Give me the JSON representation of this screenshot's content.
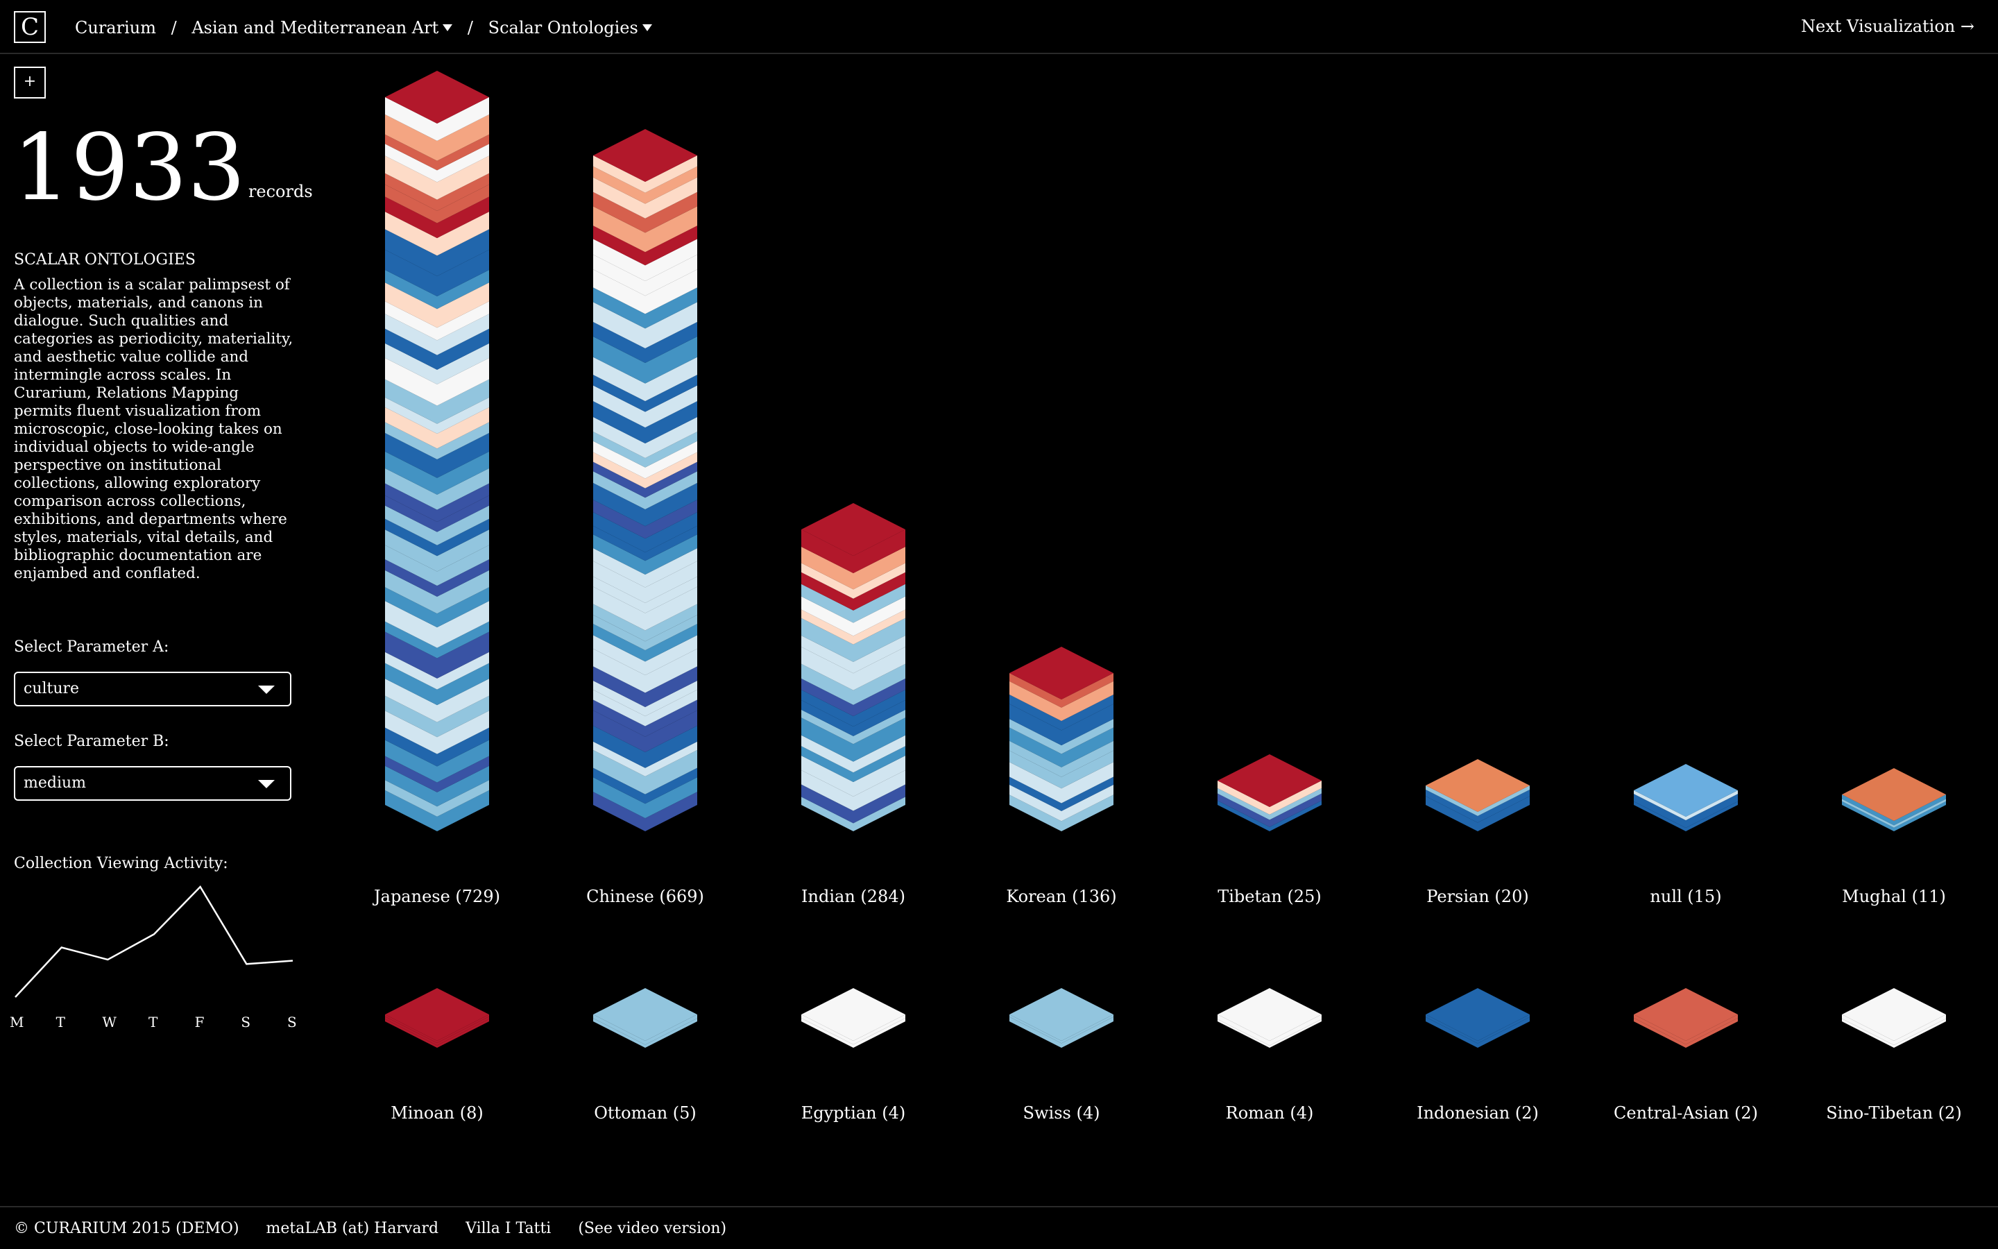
{
  "header": {
    "logo_letter": "C",
    "breadcrumb": [
      {
        "label": "Curarium",
        "dropdown": false
      },
      {
        "label": "Asian and Mediterranean Art",
        "dropdown": true
      },
      {
        "label": "Scalar Ontologies",
        "dropdown": true
      }
    ],
    "separator": "/",
    "next_label": "Next Visualization →"
  },
  "sidebar": {
    "plus_label": "+",
    "record_count": "1933",
    "record_label": "records",
    "title": "SCALAR ONTOLOGIES",
    "description": "A collection is a scalar palimpsest of objects, materials, and canons in dialogue. Such qualities and categories as periodicity, materiality, and aesthetic value collide and intermingle across scales. In Curarium, Relations Mapping permits fluent visualization from microscopic, close-looking takes on individual objects to wide-angle perspective on institutional collections, allowing exploratory comparison across collections, exhibitions, and departments where styles, materials, vital details, and bibliographic documentation are enjambed and conflated.",
    "param_a_label": "Select Parameter A:",
    "param_a_value": "culture",
    "param_b_label": "Select Parameter B:",
    "param_b_value": "medium",
    "activity_label": "Collection Viewing Activity:",
    "activity_days": [
      "M",
      "T",
      "W",
      "T",
      "F",
      "S",
      "S"
    ],
    "activity_values": [
      0,
      0.45,
      0.34,
      0.57,
      1.0,
      0.3,
      0.33
    ]
  },
  "chart_data": {
    "type": "bar",
    "categories": [
      {
        "name": "Japanese",
        "count": 729
      },
      {
        "name": "Chinese",
        "count": 669
      },
      {
        "name": "Indian",
        "count": 284
      },
      {
        "name": "Korean",
        "count": 136
      },
      {
        "name": "Tibetan",
        "count": 25
      },
      {
        "name": "Persian",
        "count": 20
      },
      {
        "name": "null",
        "count": 15
      },
      {
        "name": "Mughal",
        "count": 11
      },
      {
        "name": "Minoan",
        "count": 8
      },
      {
        "name": "Ottoman",
        "count": 5
      },
      {
        "name": "Egyptian",
        "count": 4
      },
      {
        "name": "Swiss",
        "count": 4
      },
      {
        "name": "Roman",
        "count": 4
      },
      {
        "name": "Indonesian",
        "count": 2
      },
      {
        "name": "Central-Asian",
        "count": 2
      },
      {
        "name": "Sino-Tibetan",
        "count": 2
      }
    ],
    "palette": [
      "#b2182b",
      "#d6604d",
      "#f4a582",
      "#fddbc7",
      "#f7f7f7",
      "#d1e5f0",
      "#92c5de",
      "#4393c3",
      "#2166ac",
      "#3953a4"
    ],
    "top_color": "#b2182b"
  },
  "footer": {
    "copyright": "© CURARIUM 2015 (DEMO)",
    "lab": "metaLAB (at) Harvard",
    "villa": "Villa I Tatti",
    "video": "(See video version)"
  }
}
